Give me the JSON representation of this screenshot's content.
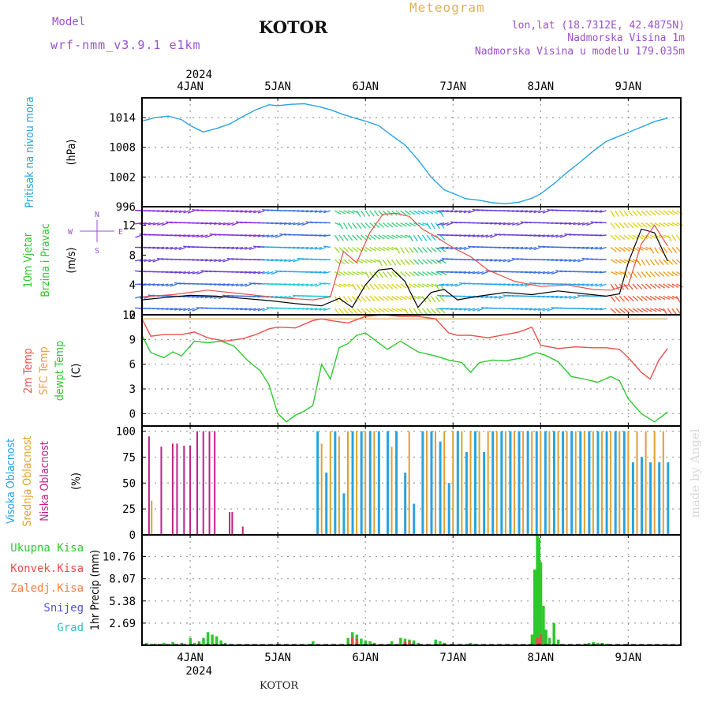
{
  "header": {
    "model_label": "Model",
    "model_value": "wrf-nmm_v3.9.1 e1km",
    "station": "KOTOR",
    "product": "Meteogram",
    "lonlat": "lon,lat (18.7312E, 42.4875N)",
    "elevation": "Nadmorska Visina 1m",
    "model_elevation": "Nadmorska Visina u modelu 179.035m",
    "footer_station": "KOTOR",
    "credit": "made by Angel"
  },
  "colors": {
    "pressure": "#29a3e0",
    "temp_2m": "#e8504a",
    "sfc_temp": "#e8a040",
    "dewpoint": "#2ec82e",
    "cloud_high": "#29a3e0",
    "cloud_mid": "#e0a030",
    "cloud_low": "#c0208a",
    "precip_total": "#2ec82e",
    "precip_conv": "#e8504a",
    "frame": "#000000",
    "grid": "#9a9a9a",
    "title_purple": "#9b4fcf",
    "title_orange": "#e0b060"
  },
  "chart_data": [
    {
      "type": "line",
      "name": "pressure",
      "ylabel": [
        "Pritisak na nivou mora",
        "(hPa)"
      ],
      "ylim": [
        996,
        1018
      ],
      "yticks": [
        996,
        1002,
        1008,
        1014
      ],
      "x_days": [
        "4JAN",
        "5JAN",
        "6JAN",
        "7JAN",
        "8JAN",
        "9JAN"
      ],
      "top_year": "2024",
      "bottom_year": "2024",
      "grid": true,
      "x": [
        3.45,
        3.6,
        3.75,
        3.9,
        4.0,
        4.15,
        4.3,
        4.45,
        4.6,
        4.75,
        4.9,
        5.0,
        5.15,
        5.3,
        5.45,
        5.6,
        5.75,
        5.9,
        6.0,
        6.15,
        6.3,
        6.45,
        6.6,
        6.75,
        6.9,
        7.0,
        7.15,
        7.3,
        7.45,
        7.6,
        7.75,
        7.9,
        8.0,
        8.15,
        8.3,
        8.45,
        8.6,
        8.75,
        8.9,
        9.0,
        9.15,
        9.3,
        9.45
      ],
      "values": [
        1013.3,
        1014,
        1014.3,
        1013.6,
        1012.4,
        1011.1,
        1011.8,
        1012.7,
        1014.2,
        1015.6,
        1016.6,
        1016.4,
        1016.7,
        1016.8,
        1016.3,
        1015.6,
        1014.6,
        1013.8,
        1013.3,
        1012.4,
        1010.4,
        1008.5,
        1005.5,
        1002.0,
        999.4,
        998.7,
        997.6,
        997.3,
        996.8,
        996.6,
        996.9,
        997.7,
        998.6,
        1000.6,
        1002.9,
        1005.0,
        1007.2,
        1009.2,
        1010.3,
        1011.0,
        1012.1,
        1013.2,
        1013.9
      ]
    },
    {
      "type": "line",
      "name": "wind",
      "ylabel": [
        "10m Vjetar",
        "Brzina i Pravac",
        "(m/s)"
      ],
      "ylim": [
        0,
        14.5
      ],
      "yticks": [
        0,
        4,
        8,
        12
      ],
      "compass": [
        "N",
        "W",
        "E",
        "S"
      ],
      "grid": false,
      "series": [
        {
          "x": [
            3.45,
            3.7,
            4.0,
            4.3,
            4.6,
            4.9,
            5.2,
            5.5,
            5.7,
            5.85,
            6.0,
            6.15,
            6.3,
            6.45,
            6.6,
            6.75,
            6.9,
            7.05,
            7.3,
            7.6,
            7.9,
            8.2,
            8.5,
            8.75,
            8.9,
            9.0,
            9.15,
            9.3,
            9.45
          ],
          "values": [
            2.0,
            2.3,
            2.6,
            2.5,
            2.2,
            1.9,
            1.5,
            1.2,
            2.2,
            1.0,
            4.0,
            6.0,
            6.2,
            4.5,
            1.0,
            3.0,
            3.4,
            2.0,
            2.5,
            3.0,
            2.7,
            3.2,
            2.8,
            2.5,
            2.8,
            7.0,
            11.5,
            11.0,
            7.2
          ]
        },
        {
          "x": [
            3.45,
            3.8,
            4.2,
            4.6,
            5.0,
            5.4,
            5.6,
            5.75,
            5.9,
            6.05,
            6.2,
            6.35,
            6.5,
            6.65,
            6.8,
            7.0,
            7.2,
            7.4,
            7.7,
            8.0,
            8.3,
            8.6,
            8.8,
            9.0,
            9.15,
            9.3,
            9.45
          ],
          "values": [
            2.4,
            2.7,
            3.3,
            2.8,
            2.3,
            2.0,
            2.4,
            8.5,
            7.0,
            11.0,
            13.5,
            13.6,
            13.2,
            11.5,
            10.5,
            9.0,
            7.8,
            6.0,
            4.5,
            3.8,
            4.0,
            3.4,
            3.3,
            4.0,
            9.5,
            12.0,
            9.2
          ]
        }
      ]
    },
    {
      "type": "line",
      "name": "temperature",
      "ylabel": [
        "2m Temp",
        "SFC Temp",
        "dewpt Temp",
        "(C)"
      ],
      "ylim": [
        -1.5,
        12
      ],
      "yticks": [
        0,
        3,
        6,
        9,
        12
      ],
      "grid": true,
      "series": [
        {
          "name": "2m Temp",
          "x": [
            3.45,
            3.55,
            3.7,
            3.9,
            4.05,
            4.2,
            4.4,
            4.6,
            4.75,
            4.9,
            5.0,
            5.2,
            5.4,
            5.5,
            5.6,
            5.8,
            6.0,
            6.2,
            6.4,
            6.6,
            6.8,
            6.95,
            7.05,
            7.2,
            7.4,
            7.55,
            7.75,
            7.9,
            8.0,
            8.2,
            8.4,
            8.6,
            8.75,
            8.9,
            9.0,
            9.15,
            9.25,
            9.35,
            9.45
          ],
          "values": [
            11.5,
            9.4,
            9.6,
            9.6,
            9.9,
            9.2,
            8.8,
            9.1,
            9.6,
            10.3,
            10.5,
            10.4,
            11.3,
            11.5,
            11.3,
            11.0,
            11.8,
            12.0,
            11.8,
            11.8,
            11.5,
            9.8,
            9.5,
            9.5,
            9.2,
            9.5,
            9.9,
            10.5,
            8.3,
            7.9,
            8.1,
            8.0,
            8.0,
            7.8,
            6.8,
            5.0,
            4.2,
            6.5,
            7.9
          ]
        },
        {
          "name": "SFC Temp",
          "x": [
            3.45,
            9.45
          ],
          "values": [
            11.5,
            11.5
          ]
        },
        {
          "name": "dewpt Temp",
          "x": [
            3.45,
            3.55,
            3.7,
            3.8,
            3.9,
            4.05,
            4.2,
            4.35,
            4.5,
            4.65,
            4.8,
            4.9,
            5.0,
            5.1,
            5.2,
            5.3,
            5.4,
            5.5,
            5.6,
            5.7,
            5.8,
            5.9,
            6.0,
            6.1,
            6.25,
            6.4,
            6.6,
            6.8,
            6.95,
            7.1,
            7.2,
            7.3,
            7.45,
            7.6,
            7.8,
            7.95,
            8.05,
            8.2,
            8.35,
            8.5,
            8.65,
            8.8,
            8.9,
            9.0,
            9.15,
            9.3,
            9.45
          ],
          "values": [
            9.5,
            7.4,
            6.8,
            7.5,
            7.0,
            8.8,
            8.6,
            8.8,
            8.2,
            6.5,
            5.2,
            3.5,
            0.0,
            -1.0,
            -0.2,
            0.3,
            1.0,
            6.0,
            4.2,
            8.0,
            8.5,
            9.5,
            9.8,
            9.0,
            7.8,
            8.8,
            7.5,
            7.0,
            6.5,
            6.2,
            5.0,
            6.2,
            6.5,
            6.4,
            6.8,
            7.4,
            7.1,
            6.3,
            4.5,
            4.2,
            3.8,
            4.5,
            4.0,
            1.8,
            0.0,
            -1.0,
            0.2
          ]
        }
      ]
    },
    {
      "type": "bar",
      "name": "cloud_cover",
      "ylabel": [
        "Visoka Oblacnost",
        "Srednja Oblacnost",
        "Niska Oblacnost",
        "(%)"
      ],
      "ylim": [
        0,
        105
      ],
      "yticks": [
        0,
        25,
        50,
        75,
        100
      ],
      "grid": true,
      "series": [
        {
          "name": "Niska Oblacnost",
          "x": [
            3.53,
            3.67,
            3.8,
            3.85,
            3.93,
            4.0,
            4.08,
            4.15,
            4.22,
            4.28,
            4.45,
            4.48,
            4.6
          ],
          "values": [
            95,
            85,
            88,
            88,
            86,
            86,
            100,
            100,
            100,
            100,
            22,
            22,
            8
          ]
        },
        {
          "name": "Srednja Oblacnost",
          "x": [
            3.56,
            5.5,
            5.6,
            5.7,
            5.8,
            5.9,
            6.0,
            6.1,
            6.3,
            6.5,
            6.7,
            6.8,
            6.9,
            7.0,
            7.1,
            7.2,
            7.3,
            7.4,
            7.5,
            7.6,
            7.7,
            7.8,
            7.9,
            8.0,
            8.1,
            8.2,
            8.3,
            8.4,
            8.5,
            8.6,
            8.7,
            8.8,
            8.9,
            9.0,
            9.1,
            9.2,
            9.3,
            9.4
          ],
          "values": [
            33,
            88,
            100,
            95,
            100,
            100,
            100,
            100,
            85,
            100,
            100,
            100,
            100,
            100,
            100,
            100,
            100,
            100,
            100,
            100,
            100,
            100,
            100,
            100,
            100,
            100,
            100,
            100,
            100,
            100,
            100,
            100,
            100,
            100,
            100,
            100,
            100,
            100
          ]
        },
        {
          "name": "Visoka Oblacnost",
          "x": [
            5.45,
            5.55,
            5.65,
            5.75,
            5.85,
            5.95,
            6.05,
            6.15,
            6.25,
            6.35,
            6.45,
            6.55,
            6.65,
            6.75,
            6.85,
            6.95,
            7.05,
            7.15,
            7.25,
            7.35,
            7.45,
            7.55,
            7.65,
            7.75,
            7.85,
            7.95,
            8.05,
            8.15,
            8.25,
            8.35,
            8.45,
            8.55,
            8.65,
            8.75,
            8.85,
            8.95,
            9.05,
            9.15,
            9.25,
            9.35,
            9.45
          ],
          "values": [
            100,
            60,
            100,
            40,
            100,
            100,
            100,
            100,
            100,
            100,
            60,
            30,
            100,
            100,
            90,
            50,
            100,
            80,
            100,
            80,
            100,
            100,
            100,
            100,
            100,
            100,
            100,
            100,
            100,
            100,
            100,
            100,
            100,
            100,
            100,
            100,
            70,
            75,
            70,
            70,
            70
          ]
        }
      ]
    },
    {
      "type": "bar",
      "name": "precipitation",
      "ylabel": [
        "1hr Precip",
        "(mm)"
      ],
      "legend": [
        "Ukupna Kisa",
        "Konvek.Kisa",
        "Zaledj.Kisa",
        "Snijeg",
        "Grad"
      ],
      "ylim": [
        0,
        13.4
      ],
      "yticks": [
        2.69,
        5.38,
        8.07,
        10.76
      ],
      "ytick_labels": [
        "2.69",
        "5.38",
        "8.07",
        "10.76"
      ],
      "grid": true,
      "series": [
        {
          "name": "Ukupna Kisa",
          "x": [
            3.5,
            3.6,
            3.7,
            3.8,
            3.9,
            4.0,
            4.05,
            4.1,
            4.15,
            4.2,
            4.25,
            4.3,
            4.35,
            4.4,
            5.4,
            5.8,
            5.85,
            5.9,
            5.95,
            6.0,
            6.05,
            6.1,
            6.3,
            6.4,
            6.45,
            6.5,
            6.55,
            6.6,
            6.8,
            6.85,
            6.9,
            7.2,
            7.9,
            7.93,
            7.96,
            7.98,
            8.0,
            8.03,
            8.06,
            8.1,
            8.15,
            8.2,
            8.5,
            8.55,
            8.6,
            8.65,
            8.7,
            8.75
          ],
          "values": [
            0.3,
            0.2,
            0.3,
            0.4,
            0.3,
            0.9,
            0.3,
            0.5,
            0.9,
            1.6,
            1.3,
            1.1,
            0.6,
            0.3,
            0.5,
            0.9,
            1.6,
            1.3,
            0.8,
            0.6,
            0.5,
            0.3,
            0.5,
            0.9,
            0.8,
            0.7,
            0.6,
            0.3,
            0.7,
            0.5,
            0.3,
            0.3,
            1.3,
            9.2,
            13.4,
            13.0,
            10.1,
            4.8,
            1.9,
            0.9,
            2.7,
            0.7,
            0.2,
            0.3,
            0.4,
            0.3,
            0.3,
            0.2
          ]
        },
        {
          "name": "Konvek.Kisa",
          "x": [
            5.85,
            5.9,
            6.45,
            6.5,
            7.96,
            7.98,
            8.0
          ],
          "values": [
            1.0,
            0.8,
            0.5,
            0.5,
            0.9,
            0.6,
            1.3
          ]
        }
      ]
    }
  ]
}
